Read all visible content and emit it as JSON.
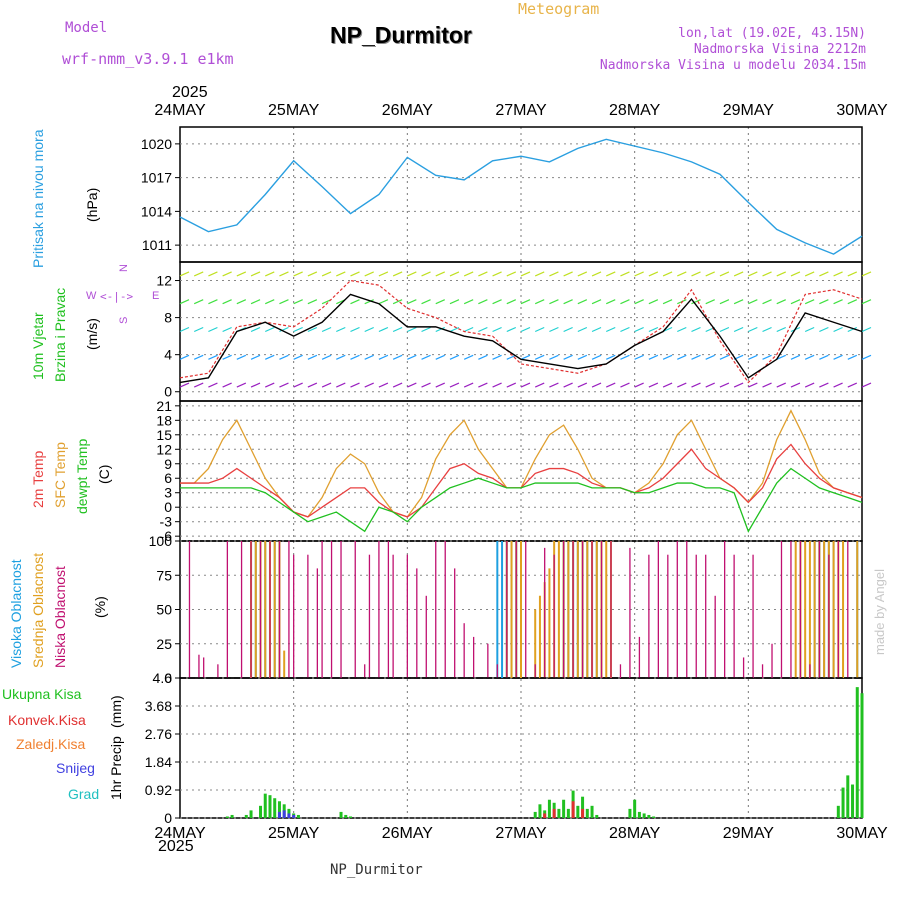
{
  "header": {
    "model_label": "Model",
    "model_name": "wrf-nmm_v3.9.1 e1km",
    "chart_kind": "Meteogram",
    "station": "NP_Durmitor",
    "coords": "lon,lat (19.02E, 43.15N)",
    "altitude": "Nadmorska Visina 2212m",
    "model_altitude": "Nadmorska Visina u modelu 2034.15m",
    "year_top": "2025",
    "year_bottom": "2025",
    "footer_station": "NP_Durmitor",
    "watermark": "made by Angel"
  },
  "colors": {
    "pressure": "#2a9fe0",
    "wind_speed": "#000000",
    "wind_gust": "#e03030",
    "temp_2m": "#e84040",
    "temp_sfc": "#e0a030",
    "dewpoint": "#20c020",
    "cloud_high": "#1ea0e0",
    "cloud_mid": "#e0a020",
    "cloud_low": "#c01070",
    "precip_total": "#20c020",
    "precip_conv": "#e03030",
    "precip_froz": "#f08030",
    "snow": "#4040e0",
    "graupel": "#20c0c0",
    "purple_text": "#b04fd6"
  },
  "chart_data": [
    {
      "type": "line",
      "panel": "pressure",
      "ylabel_main": "Pritisak na nivou mora",
      "ylabel_unit": "(hPa)",
      "yticks": [
        1011,
        1014,
        1017,
        1020
      ],
      "ylim": [
        1009.5,
        1021.5
      ],
      "x_hours": [
        0,
        6,
        12,
        18,
        24,
        30,
        36,
        42,
        48,
        54,
        60,
        66,
        72,
        78,
        84,
        90,
        96,
        102,
        108,
        114,
        120,
        126,
        132,
        138,
        144
      ],
      "series": [
        {
          "name": "pressure",
          "values": [
            1013.5,
            1012.2,
            1012.8,
            1015.5,
            1018.5,
            1016.2,
            1013.8,
            1015.5,
            1018.8,
            1017.2,
            1016.8,
            1018.5,
            1018.9,
            1018.4,
            1019.6,
            1020.4,
            1019.8,
            1019.2,
            1018.4,
            1017.3,
            1014.8,
            1012.4,
            1011.2,
            1010.2,
            1011.8
          ]
        }
      ],
      "grid": true
    },
    {
      "type": "line",
      "panel": "wind",
      "ylabel_main": "10m Vjetar",
      "ylabel_sub": "Brzina i Pravac",
      "ylabel_unit": "(m/s)",
      "compass": {
        "n": "N",
        "s": "S",
        "w": "W",
        "e": "E"
      },
      "yticks": [
        0,
        4,
        8,
        12
      ],
      "ylim": [
        -1,
        14
      ],
      "x_hours": [
        0,
        6,
        12,
        18,
        24,
        30,
        36,
        42,
        48,
        54,
        60,
        66,
        72,
        78,
        84,
        90,
        96,
        102,
        108,
        114,
        120,
        126,
        132,
        138,
        144
      ],
      "series": [
        {
          "name": "speed",
          "values": [
            1.0,
            1.5,
            6.5,
            7.5,
            6.0,
            7.5,
            10.5,
            9.5,
            7.0,
            7.0,
            6.0,
            5.5,
            3.5,
            3.0,
            2.5,
            3.0,
            5.0,
            6.5,
            10.0,
            6.0,
            1.5,
            3.5,
            8.5,
            7.5,
            6.5
          ]
        },
        {
          "name": "gust",
          "values": [
            1.5,
            2.0,
            7.0,
            7.5,
            7.0,
            9.0,
            12.0,
            11.5,
            9.0,
            8.0,
            6.5,
            6.0,
            3.0,
            2.5,
            2.0,
            3.0,
            5.0,
            7.0,
            11.0,
            5.5,
            1.0,
            4.0,
            10.5,
            11.0,
            10.0
          ]
        }
      ],
      "grid": true
    },
    {
      "type": "line",
      "panel": "temperature",
      "ylabel_main": "2m Temp",
      "ylabel_sub": "SFC Temp",
      "ylabel_sub2": "dewpt Temp",
      "ylabel_unit": "(C)",
      "yticks": [
        -6,
        -3,
        0,
        3,
        6,
        9,
        12,
        15,
        18,
        21
      ],
      "ylim": [
        -7,
        22
      ],
      "x_hours": [
        0,
        3,
        6,
        9,
        12,
        15,
        18,
        21,
        24,
        27,
        30,
        33,
        36,
        39,
        42,
        45,
        48,
        51,
        54,
        57,
        60,
        63,
        66,
        69,
        72,
        75,
        78,
        81,
        84,
        87,
        90,
        93,
        96,
        99,
        102,
        105,
        108,
        111,
        114,
        117,
        120,
        123,
        126,
        129,
        132,
        135,
        138,
        141,
        144
      ],
      "series": [
        {
          "name": "t2m",
          "values": [
            5,
            5,
            5,
            6,
            8,
            6,
            4,
            2,
            -1,
            -2,
            0,
            2,
            4,
            4,
            1,
            -1,
            -2,
            0,
            4,
            8,
            9,
            7,
            6,
            4,
            4,
            7,
            8,
            8,
            7,
            5,
            4,
            4,
            3,
            4,
            6,
            9,
            12,
            8,
            6,
            4,
            1,
            4,
            10,
            13,
            9,
            6,
            4,
            3,
            2
          ]
        },
        {
          "name": "tsfc",
          "values": [
            5,
            5,
            8,
            14,
            18,
            12,
            6,
            2,
            -1,
            -2,
            2,
            8,
            11,
            9,
            3,
            -1,
            -2,
            2,
            10,
            15,
            18,
            12,
            8,
            4,
            4,
            10,
            15,
            17,
            12,
            6,
            4,
            4,
            3,
            5,
            9,
            15,
            18,
            12,
            6,
            4,
            1,
            5,
            14,
            20,
            14,
            7,
            4,
            3,
            2
          ]
        },
        {
          "name": "dewpt",
          "values": [
            4,
            4,
            4,
            4,
            4,
            4,
            3,
            1,
            -1,
            -3,
            -2,
            -1,
            -3,
            -5,
            0,
            -1,
            -3,
            0,
            2,
            4,
            5,
            6,
            5,
            4,
            4,
            5,
            5,
            5,
            5,
            4,
            4,
            4,
            3,
            3,
            4,
            5,
            5,
            4,
            4,
            3,
            -5,
            0,
            5,
            8,
            6,
            4,
            3,
            2,
            1
          ]
        }
      ],
      "grid": true
    },
    {
      "type": "bar",
      "panel": "cloud",
      "ylabel_main": "Visoka Oblacnost",
      "ylabel_sub": "Srednja Oblacnost",
      "ylabel_sub2": "Niska Oblacnost",
      "ylabel_unit": "(%)",
      "yticks": [
        0,
        25,
        50,
        75,
        100
      ],
      "ylim": [
        0,
        100
      ],
      "series": [
        {
          "name": "high",
          "x_hours": [
            15,
            16,
            17,
            18,
            19,
            20,
            21,
            67,
            68,
            69,
            70,
            71,
            81,
            82,
            83,
            84,
            85,
            86,
            87,
            88,
            89,
            134,
            135,
            136,
            137,
            138,
            143
          ],
          "values": [
            100,
            100,
            100,
            100,
            100,
            100,
            100,
            100,
            100,
            100,
            100,
            100,
            100,
            100,
            100,
            100,
            100,
            100,
            100,
            100,
            100,
            100,
            100,
            100,
            100,
            100,
            100
          ]
        },
        {
          "name": "mid",
          "x_hours": [
            15,
            16,
            17,
            18,
            19,
            20,
            21,
            22,
            69,
            70,
            71,
            72,
            75,
            76,
            77,
            78,
            79,
            80,
            81,
            82,
            83,
            84,
            85,
            86,
            87,
            88,
            89,
            90,
            91,
            130,
            131,
            132,
            133,
            134,
            135,
            136,
            137,
            138,
            139,
            140,
            143
          ],
          "values": [
            100,
            100,
            100,
            100,
            100,
            100,
            100,
            20,
            100,
            100,
            100,
            100,
            50,
            60,
            70,
            80,
            100,
            100,
            100,
            100,
            100,
            100,
            100,
            100,
            100,
            100,
            100,
            100,
            100,
            100,
            100,
            100,
            100,
            100,
            100,
            100,
            100,
            100,
            100,
            100,
            100
          ]
        },
        {
          "name": "low",
          "x_hours": [
            2,
            4,
            5,
            8,
            10,
            13,
            15,
            17,
            19,
            21,
            23,
            24,
            27,
            29,
            30,
            32,
            34,
            37,
            39,
            40,
            42,
            44,
            45,
            48,
            50,
            52,
            54,
            56,
            58,
            60,
            62,
            65,
            67,
            69,
            71,
            73,
            75,
            77,
            79,
            81,
            83,
            85,
            87,
            89,
            91,
            93,
            95,
            97,
            99,
            101,
            103,
            105,
            107,
            109,
            111,
            113,
            115,
            117,
            119,
            121,
            123,
            125,
            127,
            129,
            131,
            133,
            135,
            137,
            139,
            141
          ],
          "values": [
            100,
            17,
            15,
            10,
            100,
            100,
            100,
            100,
            100,
            100,
            100,
            90,
            90,
            80,
            100,
            100,
            100,
            100,
            10,
            90,
            100,
            100,
            90,
            90,
            80,
            60,
            100,
            100,
            80,
            40,
            30,
            25,
            10,
            100,
            100,
            100,
            10,
            95,
            90,
            100,
            100,
            100,
            100,
            100,
            100,
            10,
            95,
            30,
            90,
            100,
            90,
            100,
            100,
            90,
            90,
            60,
            100,
            90,
            15,
            90,
            10,
            25,
            100,
            100,
            100,
            10,
            100,
            90,
            100,
            100
          ]
        }
      ],
      "grid": true
    },
    {
      "type": "bar",
      "panel": "precip",
      "ylabel_main": "1hr Precip",
      "ylabel_unit": "(mm)",
      "yticks": [
        0,
        0.92,
        1.84,
        2.76,
        3.68,
        4.6
      ],
      "ylim": [
        0,
        4.6
      ],
      "legend": [
        "Ukupna Kisa",
        "Konvek.Kisa",
        "Zaledj.Kisa",
        "Snijeg",
        "Grad"
      ],
      "series": [
        {
          "name": "total",
          "x_hours": [
            10,
            11,
            14,
            15,
            17,
            18,
            19,
            20,
            21,
            22,
            23,
            24,
            25,
            34,
            35,
            36,
            75,
            76,
            77,
            78,
            79,
            80,
            81,
            82,
            83,
            84,
            85,
            86,
            87,
            88,
            95,
            96,
            97,
            98,
            99,
            100,
            139,
            140,
            141,
            142,
            143,
            144
          ],
          "values": [
            0.05,
            0.1,
            0.1,
            0.25,
            0.4,
            0.8,
            0.75,
            0.65,
            0.55,
            0.45,
            0.3,
            0.15,
            0.1,
            0.2,
            0.1,
            0.05,
            0.2,
            0.45,
            0.25,
            0.6,
            0.5,
            0.3,
            0.6,
            0.3,
            0.9,
            0.4,
            0.7,
            0.3,
            0.4,
            0.1,
            0.3,
            0.6,
            0.2,
            0.15,
            0.1,
            0.05,
            0.4,
            1.0,
            1.4,
            1.1,
            4.3,
            4.1
          ]
        },
        {
          "name": "conv",
          "x_hours": [
            77,
            79,
            83,
            85
          ],
          "values": [
            0.15,
            0.3,
            0.55,
            0.3
          ]
        },
        {
          "name": "snow",
          "x_hours": [
            21,
            22,
            23,
            24
          ],
          "values": [
            0.2,
            0.25,
            0.15,
            0.1
          ]
        }
      ],
      "grid": true
    }
  ],
  "x_axis": {
    "labels": [
      "24MAY",
      "25MAY",
      "26MAY",
      "27MAY",
      "28MAY",
      "29MAY",
      "30MAY"
    ]
  }
}
